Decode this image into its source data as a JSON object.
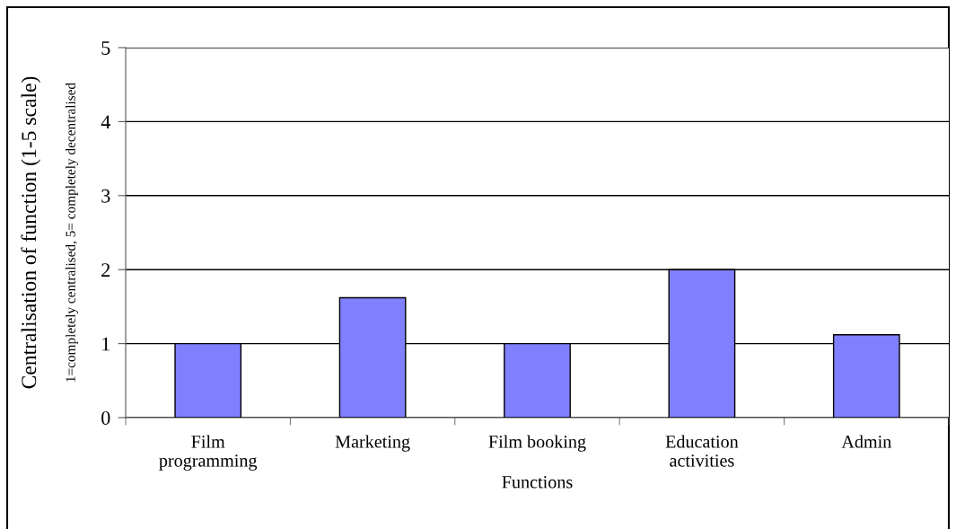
{
  "chart_data": {
    "type": "bar",
    "categories": [
      "Film\nprogramming",
      "Marketing",
      "Film booking",
      "Education\nactivities",
      "Admin"
    ],
    "values": [
      1,
      1.62,
      1,
      2,
      1.12
    ],
    "color": "#8080ff",
    "xlabel": "Functions",
    "ylabel": "Centralisation of function (1-5 scale)",
    "annotations": [
      "1=completely centralised, 5= completely decentralised"
    ],
    "ylim": [
      0,
      5
    ],
    "yticks": [
      0,
      1,
      2,
      3,
      4,
      5
    ],
    "grid": "y",
    "legend": false
  }
}
